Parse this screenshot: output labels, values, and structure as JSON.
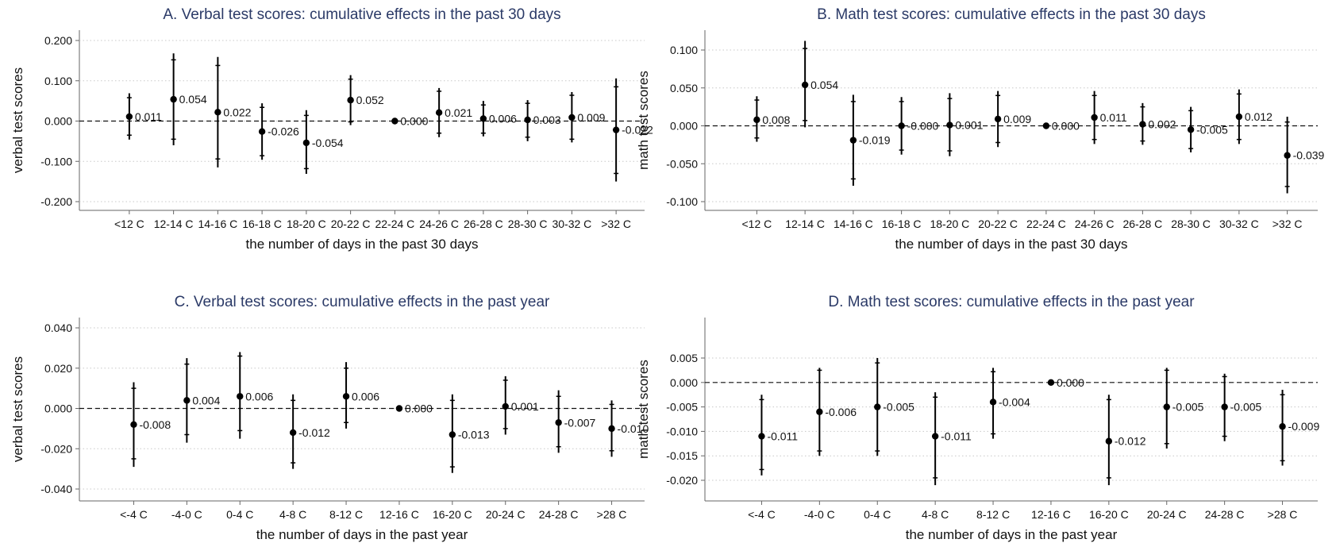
{
  "chart_data": [
    {
      "id": "A",
      "type": "scatter",
      "title": "A. Verbal test scores: cumulative effects in the past 30 days",
      "xlabel": "the number of days in the past 30 days",
      "ylabel": "verbal test scores",
      "ylim": [
        -0.2,
        0.2
      ],
      "yticks": [
        0.2,
        0.1,
        0.0,
        -0.1,
        -0.2
      ],
      "ytick_labels": [
        "0.200",
        "0.100",
        "0.000",
        "-0.100",
        "-0.200"
      ],
      "categories": [
        "<12 C",
        "12-14 C",
        "14-16 C",
        "16-18 C",
        "18-20 C",
        "20-22 C",
        "22-24 C",
        "24-26 C",
        "26-28 C",
        "28-30 C",
        "30-32 C",
        ">32 C"
      ],
      "values": [
        0.011,
        0.054,
        0.022,
        -0.026,
        -0.054,
        0.052,
        0.0,
        0.021,
        0.006,
        0.003,
        0.009,
        -0.022
      ],
      "labels": [
        "0.011",
        "0.054",
        "0.022",
        "-0.026",
        "-0.054",
        "0.052",
        "0.000",
        "0.021",
        "0.006",
        "0.003",
        "0.009",
        "-0.022"
      ],
      "ci90": [
        [
          -0.035,
          0.058
        ],
        [
          -0.045,
          0.152
        ],
        [
          -0.094,
          0.138
        ],
        [
          -0.086,
          0.034
        ],
        [
          -0.118,
          0.014
        ],
        [
          -0.002,
          0.104
        ],
        [
          0.0,
          0.0
        ],
        [
          -0.03,
          0.074
        ],
        [
          -0.03,
          0.04
        ],
        [
          -0.04,
          0.044
        ],
        [
          -0.045,
          0.064
        ],
        [
          -0.13,
          0.085
        ]
      ],
      "ci95": [
        [
          -0.046,
          0.069
        ],
        [
          -0.06,
          0.168
        ],
        [
          -0.115,
          0.159
        ],
        [
          -0.096,
          0.044
        ],
        [
          -0.131,
          0.027
        ],
        [
          -0.01,
          0.114
        ],
        [
          0.0,
          0.0
        ],
        [
          -0.04,
          0.082
        ],
        [
          -0.038,
          0.05
        ],
        [
          -0.05,
          0.052
        ],
        [
          -0.053,
          0.072
        ],
        [
          -0.15,
          0.106
        ]
      ],
      "reference_line": 0,
      "grid": true
    },
    {
      "id": "B",
      "type": "scatter",
      "title": "B. Math test scores: cumulative effects in the past 30 days",
      "xlabel": "the number of days in the past 30 days",
      "ylabel": "math test scores",
      "ylim": [
        -0.1,
        0.1
      ],
      "yticks": [
        0.1,
        0.05,
        0.0,
        -0.05,
        -0.1
      ],
      "ytick_labels": [
        "0.100",
        "0.050",
        "0.000",
        "-0.050",
        "-0.100"
      ],
      "categories": [
        "<12 C",
        "12-14 C",
        "14-16 C",
        "16-18 C",
        "18-20 C",
        "20-22 C",
        "22-24 C",
        "24-26 C",
        "26-28 C",
        "28-30 C",
        "30-32 C",
        ">32 C"
      ],
      "values": [
        0.008,
        0.054,
        -0.019,
        -0.0,
        0.001,
        0.009,
        0.0,
        0.011,
        0.002,
        -0.005,
        0.012,
        -0.039
      ],
      "labels": [
        "0.008",
        "0.054",
        "-0.019",
        "-0.000",
        "0.001",
        "0.009",
        "0.000",
        "0.011",
        "0.002",
        "-0.005",
        "0.012",
        "-0.039"
      ],
      "ci90": [
        [
          -0.016,
          0.034
        ],
        [
          0.007,
          0.102
        ],
        [
          -0.07,
          0.032
        ],
        [
          -0.032,
          0.032
        ],
        [
          -0.033,
          0.036
        ],
        [
          -0.022,
          0.04
        ],
        [
          0.0,
          0.0
        ],
        [
          -0.018,
          0.04
        ],
        [
          -0.02,
          0.025
        ],
        [
          -0.03,
          0.02
        ],
        [
          -0.018,
          0.042
        ],
        [
          -0.08,
          0.005
        ]
      ],
      "ci95": [
        [
          -0.021,
          0.039
        ],
        [
          -0.002,
          0.112
        ],
        [
          -0.079,
          0.041
        ],
        [
          -0.038,
          0.038
        ],
        [
          -0.04,
          0.043
        ],
        [
          -0.028,
          0.046
        ],
        [
          0.0,
          0.0
        ],
        [
          -0.024,
          0.046
        ],
        [
          -0.025,
          0.03
        ],
        [
          -0.035,
          0.025
        ],
        [
          -0.024,
          0.048
        ],
        [
          -0.089,
          0.012
        ]
      ],
      "reference_line": 0,
      "grid": true
    },
    {
      "id": "C",
      "type": "scatter",
      "title": "C. Verbal test scores: cumulative effects in the past year",
      "xlabel": "the number of days in the past year",
      "ylabel": "verbal test scores",
      "ylim": [
        -0.04,
        0.04
      ],
      "yticks": [
        0.04,
        0.02,
        0.0,
        -0.02,
        -0.04
      ],
      "ytick_labels": [
        "0.040",
        "0.020",
        "0.000",
        "-0.020",
        "-0.040"
      ],
      "categories": [
        "<-4 C",
        "-4-0 C",
        "0-4 C",
        "4-8 C",
        "8-12 C",
        "12-16 C",
        "16-20 C",
        "20-24 C",
        "24-28 C",
        ">28 C"
      ],
      "values": [
        -0.008,
        0.004,
        0.006,
        -0.012,
        0.006,
        0.0,
        -0.013,
        0.001,
        -0.007,
        -0.01
      ],
      "labels": [
        "-0.008",
        "0.004",
        "0.006",
        "-0.012",
        "0.006",
        "0.000",
        "-0.013",
        "0.001",
        "-0.007",
        "-0.010"
      ],
      "ci90": [
        [
          -0.025,
          0.01
        ],
        [
          -0.013,
          0.022
        ],
        [
          -0.011,
          0.026
        ],
        [
          -0.027,
          0.004
        ],
        [
          -0.007,
          0.02
        ],
        [
          0.0,
          0.0
        ],
        [
          -0.029,
          0.004
        ],
        [
          -0.01,
          0.014
        ],
        [
          -0.019,
          0.006
        ],
        [
          -0.021,
          0.002
        ]
      ],
      "ci95": [
        [
          -0.029,
          0.013
        ],
        [
          -0.017,
          0.025
        ],
        [
          -0.015,
          0.028
        ],
        [
          -0.03,
          0.007
        ],
        [
          -0.01,
          0.023
        ],
        [
          0.0,
          0.0
        ],
        [
          -0.032,
          0.007
        ],
        [
          -0.013,
          0.016
        ],
        [
          -0.022,
          0.009
        ],
        [
          -0.024,
          0.004
        ]
      ],
      "reference_line": 0,
      "grid": true
    },
    {
      "id": "D",
      "type": "scatter",
      "title": "D. Math test scores: cumulative effects in the past year",
      "xlabel": "the number of days in the past year",
      "ylabel": "math test scores",
      "ylim": [
        -0.02,
        0.005
      ],
      "yticks": [
        0.005,
        0.0,
        -0.005,
        -0.01,
        -0.015,
        -0.02
      ],
      "ytick_labels": [
        "0.005",
        "0.000",
        "-0.005",
        "-0.010",
        "-0.015",
        "-0.020"
      ],
      "categories": [
        "<-4 C",
        "-4-0 C",
        "0-4 C",
        "4-8 C",
        "8-12 C",
        "12-16 C",
        "16-20 C",
        "20-24 C",
        "24-28 C",
        ">28 C"
      ],
      "values": [
        -0.011,
        -0.006,
        -0.005,
        -0.011,
        -0.004,
        0.0,
        -0.012,
        -0.005,
        -0.005,
        -0.009
      ],
      "labels": [
        "-0.011",
        "-0.006",
        "-0.005",
        "-0.011",
        "-0.004",
        "0.000",
        "-0.012",
        "-0.005",
        "-0.005",
        "-0.009"
      ],
      "ci90": [
        [
          -0.0178,
          -0.0035
        ],
        [
          -0.014,
          0.0025
        ],
        [
          -0.014,
          0.004
        ],
        [
          -0.0195,
          -0.003
        ],
        [
          -0.0105,
          0.0022
        ],
        [
          0.0,
          0.0
        ],
        [
          -0.0195,
          -0.0035
        ],
        [
          -0.0125,
          0.0025
        ],
        [
          -0.011,
          0.0012
        ],
        [
          -0.016,
          -0.0025
        ]
      ],
      "ci95": [
        [
          -0.019,
          -0.0025
        ],
        [
          -0.015,
          0.003
        ],
        [
          -0.015,
          0.005
        ],
        [
          -0.021,
          -0.002
        ],
        [
          -0.0115,
          0.003
        ],
        [
          0.0,
          0.0
        ],
        [
          -0.021,
          -0.0025
        ],
        [
          -0.0135,
          0.003
        ],
        [
          -0.012,
          0.0018
        ],
        [
          -0.017,
          -0.0015
        ]
      ],
      "reference_line": 0,
      "grid": true
    }
  ]
}
